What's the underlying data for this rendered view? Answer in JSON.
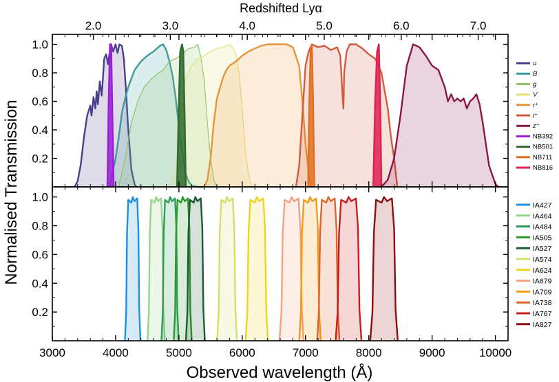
{
  "chart_data": [
    {
      "type": "area",
      "panel": "top",
      "title": "Redshifted Lyα",
      "top_axis_ticks": [
        2.0,
        3.0,
        4.0,
        5.0,
        6.0,
        7.0
      ],
      "top_axis_tick_labels": [
        "2.0",
        "3.0",
        "4.0",
        "5.0",
        "6.0",
        "7.0"
      ],
      "xlim": [
        3000,
        10200
      ],
      "ylim": [
        0,
        1.07
      ],
      "yticks": [
        0.2,
        0.4,
        0.6,
        0.8,
        1.0
      ],
      "ytick_labels": [
        "0.2",
        "0.4",
        "0.6",
        "0.8",
        "1.0"
      ],
      "legend_placement": "outside-right",
      "series": [
        {
          "name": "u",
          "color": "#4b3f8c",
          "x": [
            3350,
            3400,
            3450,
            3500,
            3550,
            3600,
            3620,
            3650,
            3680,
            3700,
            3720,
            3750,
            3780,
            3800,
            3820,
            3850,
            3880,
            3900,
            3930,
            3960,
            4000,
            4030,
            4060,
            4100,
            4130,
            4160,
            4200,
            4250,
            4300,
            4330
          ],
          "y": [
            0,
            0.04,
            0.16,
            0.35,
            0.5,
            0.57,
            0.5,
            0.63,
            0.55,
            0.67,
            0.58,
            0.74,
            0.64,
            0.77,
            0.9,
            0.93,
            0.86,
            0.93,
            1.0,
            0.95,
            1.0,
            0.94,
            1.0,
            0.99,
            0.9,
            0.7,
            0.4,
            0.12,
            0.02,
            0
          ]
        },
        {
          "name": "B",
          "color": "#3e9a9a",
          "x": [
            3900,
            3950,
            4000,
            4050,
            4100,
            4150,
            4200,
            4300,
            4400,
            4500,
            4600,
            4700,
            4750,
            4800,
            4850,
            4900,
            4950,
            5000,
            5050,
            5100,
            5150,
            5200,
            5300,
            5400
          ],
          "y": [
            0,
            0.1,
            0.2,
            0.35,
            0.52,
            0.62,
            0.7,
            0.82,
            0.88,
            0.92,
            0.95,
            0.99,
            1.0,
            0.96,
            0.88,
            0.78,
            0.62,
            0.42,
            0.25,
            0.1,
            0.04,
            0.01,
            0,
            0
          ]
        },
        {
          "name": "g",
          "color": "#8cc26a",
          "x": [
            4050,
            4150,
            4250,
            4350,
            4450,
            4550,
            4650,
            4750,
            4850,
            4950,
            5050,
            5150,
            5250,
            5300,
            5350,
            5400,
            5450,
            5500,
            5550,
            5600
          ],
          "y": [
            0,
            0.2,
            0.45,
            0.6,
            0.7,
            0.75,
            0.79,
            0.82,
            0.88,
            0.9,
            0.93,
            0.97,
            0.98,
            1.0,
            0.9,
            0.75,
            0.45,
            0.2,
            0.05,
            0
          ]
        },
        {
          "name": "V",
          "color": "#e4e07a",
          "x": [
            4900,
            4950,
            5000,
            5050,
            5100,
            5200,
            5300,
            5400,
            5500,
            5600,
            5700,
            5800,
            5850,
            5900,
            5950,
            6000,
            6050,
            6100,
            6150
          ],
          "y": [
            0,
            0.1,
            0.35,
            0.6,
            0.75,
            0.85,
            0.9,
            0.92,
            0.95,
            0.97,
            0.98,
            1.0,
            0.98,
            0.93,
            0.8,
            0.55,
            0.25,
            0.08,
            0
          ]
        },
        {
          "name": "r⁺",
          "color": "#e8943a",
          "x": [
            5400,
            5450,
            5500,
            5550,
            5600,
            5650,
            5700,
            5750,
            5800,
            5900,
            6000,
            6100,
            6200,
            6300,
            6400,
            6500,
            6600,
            6700,
            6800,
            6900,
            6950,
            7000,
            7050,
            7100
          ],
          "y": [
            0,
            0.05,
            0.2,
            0.45,
            0.62,
            0.7,
            0.77,
            0.82,
            0.85,
            0.88,
            0.92,
            0.95,
            0.97,
            0.99,
            1.0,
            1.0,
            1.0,
            1.0,
            0.98,
            0.85,
            0.6,
            0.3,
            0.1,
            0
          ]
        },
        {
          "name": "i⁺",
          "color": "#d35a3c",
          "x": [
            6850,
            6900,
            6950,
            7000,
            7050,
            7100,
            7200,
            7300,
            7400,
            7500,
            7550,
            7590,
            7600,
            7610,
            7650,
            7700,
            7800,
            7900,
            8000,
            8100,
            8200,
            8300,
            8350,
            8400,
            8450
          ],
          "y": [
            0,
            0.15,
            0.5,
            0.85,
            0.95,
            1.0,
            0.98,
            0.99,
            0.96,
            0.98,
            0.92,
            0.6,
            0.55,
            0.8,
            0.95,
            1.0,
            1.0,
            0.97,
            0.93,
            0.9,
            0.8,
            0.55,
            0.35,
            0.2,
            0
          ]
        },
        {
          "name": "z⁺",
          "color": "#8a1748",
          "x": [
            8200,
            8300,
            8400,
            8500,
            8600,
            8700,
            8800,
            8900,
            9000,
            9100,
            9200,
            9250,
            9300,
            9350,
            9400,
            9450,
            9500,
            9550,
            9600,
            9650,
            9700,
            9750,
            9800,
            9850,
            9900,
            10000,
            10050
          ],
          "y": [
            0,
            0.05,
            0.2,
            0.5,
            0.85,
            1.0,
            0.98,
            0.92,
            0.85,
            0.82,
            0.7,
            0.6,
            0.65,
            0.6,
            0.62,
            0.6,
            0.62,
            0.55,
            0.6,
            0.62,
            0.65,
            0.58,
            0.45,
            0.3,
            0.15,
            0.02,
            0
          ]
        },
        {
          "name": "NB392",
          "color": "#9b1dd8",
          "x": [
            3870,
            3890,
            3910,
            3930,
            3950,
            3970
          ],
          "y": [
            0,
            0.6,
            1.0,
            1.0,
            0.5,
            0
          ]
        },
        {
          "name": "NB501",
          "color": "#2f6a2f",
          "x": [
            4970,
            5000,
            5020,
            5050,
            5070,
            5090,
            5110
          ],
          "y": [
            0,
            0.6,
            0.95,
            1.0,
            0.95,
            0.5,
            0
          ]
        },
        {
          "name": "NB711",
          "color": "#e07020",
          "x": [
            7040,
            7060,
            7080,
            7100,
            7120,
            7140
          ],
          "y": [
            0,
            0.6,
            0.95,
            1.0,
            0.6,
            0
          ]
        },
        {
          "name": "NB816",
          "color": "#e02050",
          "x": [
            8070,
            8100,
            8130,
            8160,
            8180,
            8200
          ],
          "y": [
            0,
            0.6,
            0.95,
            1.0,
            0.6,
            0
          ]
        }
      ]
    },
    {
      "type": "area",
      "panel": "bottom",
      "xlabel": "Observed wavelength (Å)",
      "xlim": [
        3000,
        10200
      ],
      "ylim": [
        0,
        1.07
      ],
      "xticks": [
        3000,
        4000,
        5000,
        6000,
        7000,
        8000,
        9000,
        10000
      ],
      "xtick_labels": [
        "3000",
        "4000",
        "5000",
        "6000",
        "7000",
        "8000",
        "9000",
        "10000"
      ],
      "yticks": [
        0.2,
        0.4,
        0.6,
        0.8,
        1.0
      ],
      "ytick_labels": [
        "0.2",
        "0.4",
        "0.6",
        "0.8",
        "1.0"
      ],
      "legend_placement": "outside-right",
      "series": [
        {
          "name": "IA427",
          "color": "#1e90e0",
          "center": 4270,
          "width": 180
        },
        {
          "name": "IA464",
          "color": "#96d38c",
          "center": 4640,
          "width": 200
        },
        {
          "name": "IA484",
          "color": "#2d9a5a",
          "center": 4860,
          "width": 200
        },
        {
          "name": "IA505",
          "color": "#2a9a2a",
          "center": 5060,
          "width": 210
        },
        {
          "name": "IA527",
          "color": "#1e5a32",
          "center": 5260,
          "width": 220
        },
        {
          "name": "IA574",
          "color": "#d2e06a",
          "center": 5760,
          "width": 230
        },
        {
          "name": "IA624",
          "color": "#f0d51e",
          "center": 6230,
          "width": 260
        },
        {
          "name": "IA679",
          "color": "#f5a082",
          "center": 6780,
          "width": 280
        },
        {
          "name": "IA709",
          "color": "#f59a14",
          "center": 7070,
          "width": 250
        },
        {
          "name": "IA738",
          "color": "#e0642a",
          "center": 7360,
          "width": 260
        },
        {
          "name": "IA767",
          "color": "#c81e1e",
          "center": 7680,
          "width": 300
        },
        {
          "name": "IA827",
          "color": "#8a1010",
          "center": 8240,
          "width": 320
        }
      ]
    }
  ],
  "shared_ylabel": "Normalised Transmission"
}
